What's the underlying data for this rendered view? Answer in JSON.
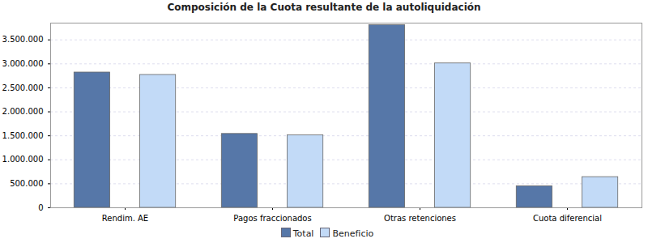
{
  "chart_data": {
    "type": "bar",
    "title": "Composición de la Cuota resultante de la autoliquidación",
    "categories": [
      "Rendim. AE",
      "Pagos fraccionados",
      "Otras retenciones",
      "Cuota diferencial"
    ],
    "series": [
      {
        "name": "Total",
        "color": "#5677a8",
        "values": [
          2820000,
          1540000,
          3810000,
          450000
        ]
      },
      {
        "name": "Beneficio",
        "color": "#c2daf7",
        "values": [
          2770000,
          1510000,
          3010000,
          640000
        ]
      }
    ],
    "ylim": [
      0,
      3850000
    ],
    "yticks": [
      0,
      {
        "value": 500000,
        "label": "500.000"
      },
      {
        "value": 1000000,
        "label": "1.000.000"
      },
      {
        "value": 1500000,
        "label": "1.500.000"
      },
      {
        "value": 2000000,
        "label": "2.000.000"
      },
      {
        "value": 2500000,
        "label": "2.500.000"
      },
      {
        "value": 3000000,
        "label": "3.000.000"
      },
      {
        "value": 3500000,
        "label": "3.500.000"
      }
    ],
    "grid": true,
    "legend": "bottom"
  }
}
